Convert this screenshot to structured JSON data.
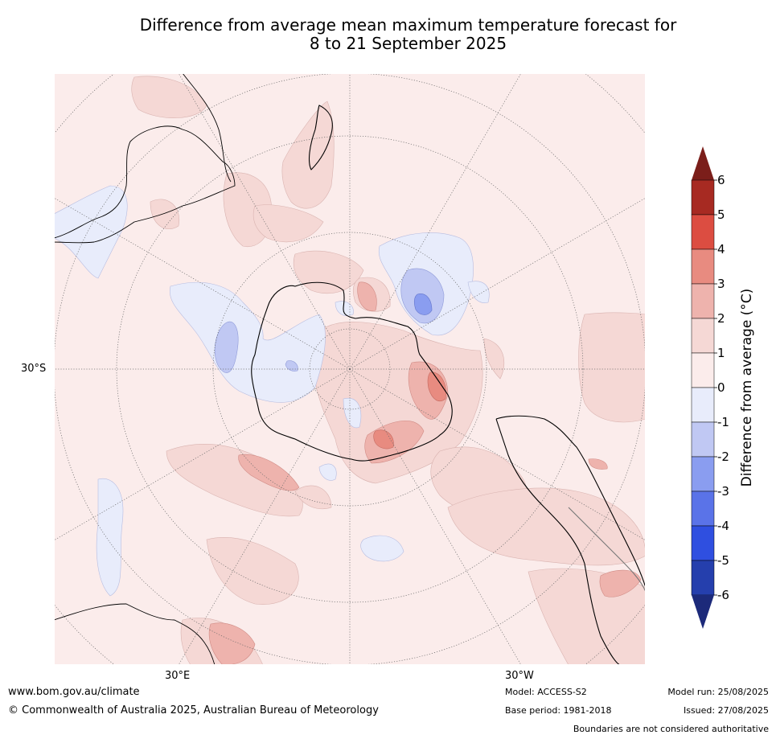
{
  "title_line1": "Difference from average mean maximum temperature forecast for",
  "title_line2": "8 to 21 September 2025",
  "map": {
    "lat_label": "30°S",
    "lon_label_e": "30°E",
    "lon_label_w": "30°W"
  },
  "colorbar": {
    "title": "Difference from average ($^\\circ$C)",
    "title_display": "Difference from average (°C)",
    "ticks": [
      "6",
      "5",
      "4",
      "3",
      "2",
      "1",
      "0",
      "-1",
      "-2",
      "-3",
      "-4",
      "-5",
      "-6"
    ],
    "colors": [
      "#7b1e1a",
      "#a72a22",
      "#dc4d41",
      "#e88b80",
      "#eeb3ad",
      "#f5d8d5",
      "#fbeceb",
      "#e8ecfb",
      "#c0c8f3",
      "#8a9df0",
      "#5a73e8",
      "#2f4fe0",
      "#253fad",
      "#1c2a7a"
    ]
  },
  "footer": {
    "url": "www.bom.gov.au/climate",
    "copyright": "© Commonwealth of Australia 2025, Australian Bureau of Meteorology",
    "model": "Model: ACCESS-S2",
    "base_period": "Base period: 1981-2018",
    "model_run": "Model run: 25/08/2025",
    "issued": "Issued: 27/08/2025",
    "disclaimer": "Boundaries are not considered authoritative"
  }
}
